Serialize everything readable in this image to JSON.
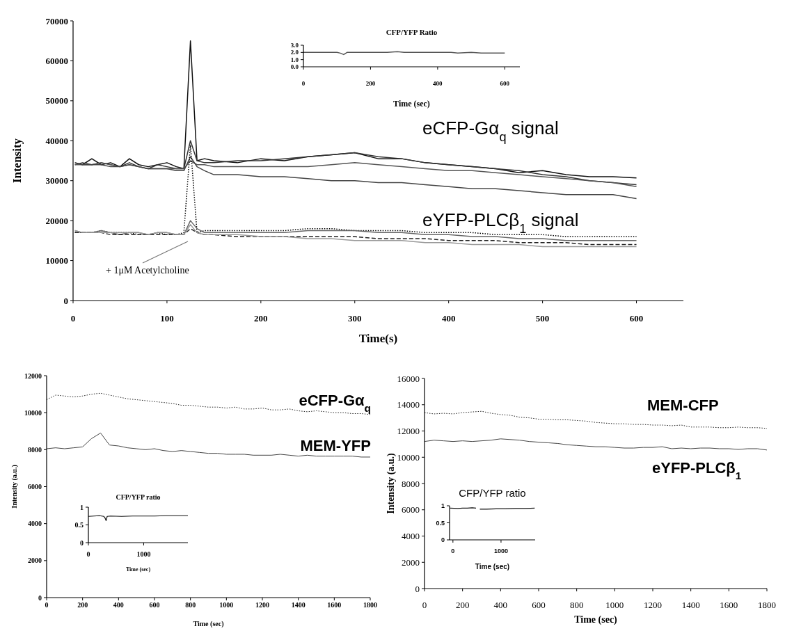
{
  "chart_data": [
    {
      "type": "line",
      "xlabel": "Time(s)",
      "ylabel": "Intensity",
      "x": [
        2,
        10,
        20,
        30,
        40,
        50,
        60,
        70,
        80,
        90,
        100,
        110,
        118,
        125,
        132,
        140,
        150,
        175,
        200,
        225,
        250,
        275,
        300,
        325,
        350,
        375,
        400,
        425,
        450,
        475,
        500,
        525,
        550,
        575,
        600
      ],
      "xlim": [
        0,
        650
      ],
      "xticks": [
        0,
        100,
        200,
        300,
        400,
        500,
        600
      ],
      "ylim": [
        0,
        70000
      ],
      "yticks": [
        0,
        10000,
        20000,
        30000,
        40000,
        50000,
        60000,
        70000
      ],
      "series": [
        {
          "color": "#111111",
          "values": [
            34500,
            34000,
            35500,
            34000,
            34500,
            33500,
            35500,
            34000,
            33500,
            34000,
            34500,
            33500,
            33000,
            65000,
            35000,
            35500,
            35000,
            34500,
            35500,
            35000,
            36000,
            36500,
            37000,
            35500,
            35500,
            34500,
            34000,
            33500,
            33000,
            32000,
            32500,
            31500,
            31000,
            31000,
            30700
          ]
        },
        {
          "color": "#333333",
          "values": [
            34000,
            34500,
            34000,
            34500,
            34000,
            33500,
            34500,
            33500,
            33000,
            34000,
            33500,
            33000,
            33000,
            40000,
            35000,
            34500,
            34500,
            35000,
            35000,
            35500,
            36000,
            36500,
            37000,
            36000,
            35500,
            34500,
            34000,
            33500,
            33000,
            32500,
            31500,
            31000,
            30000,
            29500,
            29000
          ]
        },
        {
          "color": "#555555",
          "values": [
            34000,
            34000,
            34000,
            34500,
            34000,
            33500,
            34000,
            33500,
            33000,
            33000,
            33000,
            33000,
            33000,
            35000,
            34000,
            34000,
            33500,
            33500,
            33500,
            33500,
            33500,
            34000,
            34500,
            34000,
            33500,
            33000,
            32500,
            32500,
            32000,
            31500,
            31000,
            30500,
            30000,
            29500,
            28500
          ]
        },
        {
          "color": "#444444",
          "values": [
            34500,
            34000,
            34000,
            34000,
            33500,
            33500,
            34000,
            33500,
            33000,
            33000,
            33000,
            32500,
            32500,
            36000,
            33500,
            32500,
            31500,
            31500,
            31000,
            31000,
            30500,
            30000,
            30000,
            29500,
            29500,
            29000,
            28500,
            28000,
            28000,
            27500,
            27000,
            26500,
            26500,
            26500,
            25500
          ]
        },
        {
          "color": "#000000",
          "line_style": "dotted",
          "values": [
            17000,
            17000,
            17000,
            17500,
            17000,
            17000,
            17000,
            16500,
            16500,
            17000,
            16500,
            16500,
            17000,
            39000,
            17000,
            17500,
            17500,
            17500,
            17500,
            17500,
            18000,
            18000,
            17500,
            17500,
            17500,
            17000,
            17000,
            17000,
            16500,
            16500,
            16500,
            16000,
            16000,
            16000,
            16000
          ]
        },
        {
          "color": "#666666",
          "values": [
            17500,
            17000,
            17000,
            17500,
            17000,
            16500,
            17000,
            17000,
            16500,
            17000,
            17000,
            16500,
            16500,
            20000,
            18000,
            17000,
            17000,
            17000,
            17000,
            17000,
            17500,
            17500,
            17500,
            17000,
            17000,
            16500,
            16500,
            16000,
            16000,
            15500,
            15500,
            15000,
            15000,
            15000,
            15000
          ]
        },
        {
          "color": "#222222",
          "line_style": "dashed",
          "values": [
            17000,
            17000,
            17000,
            17000,
            16500,
            16500,
            16500,
            16500,
            16500,
            16500,
            16500,
            16500,
            16500,
            18000,
            17000,
            16500,
            16500,
            16000,
            16000,
            16000,
            16000,
            16000,
            16000,
            15500,
            15500,
            15500,
            15000,
            15000,
            15000,
            14500,
            14500,
            14500,
            14000,
            14000,
            14000
          ]
        },
        {
          "color": "#999999",
          "values": [
            17500,
            17000,
            17000,
            17000,
            17000,
            17000,
            17000,
            17000,
            16500,
            17000,
            17000,
            16500,
            16500,
            19000,
            17000,
            16500,
            16500,
            16500,
            16000,
            16000,
            15500,
            15500,
            15000,
            15000,
            15000,
            14500,
            14500,
            14000,
            14000,
            14000,
            13500,
            13500,
            13500,
            13500,
            13500
          ]
        }
      ],
      "annotations": [
        "eCFP-Gα$_{q}$ signal",
        "eYFP-PLCβ$_{1}$ signal",
        "+ 1μM Acetylcholine"
      ]
    },
    {
      "type": "line",
      "title": "CFP/YFP Ratio",
      "xlabel": "Time (sec)",
      "x": [
        0,
        25,
        50,
        75,
        100,
        110,
        120,
        130,
        150,
        200,
        250,
        280,
        300,
        350,
        400,
        440,
        460,
        500,
        530,
        560,
        600
      ],
      "xlim": [
        0,
        645
      ],
      "xticks": [
        0,
        200,
        400,
        600
      ],
      "ylim": [
        0,
        3
      ],
      "yticks": [
        {
          "value": 0,
          "label": "0.0"
        },
        {
          "value": 1,
          "label": "1.0"
        },
        {
          "value": 2,
          "label": "2.0"
        },
        {
          "value": 3,
          "label": "3.0"
        }
      ],
      "series": [
        {
          "color": "#555555",
          "values": [
            2.0,
            2.0,
            2.0,
            2.0,
            2.0,
            1.9,
            1.7,
            2.0,
            2.0,
            2.0,
            2.0,
            2.1,
            2.0,
            2.0,
            2.0,
            2.0,
            1.9,
            2.0,
            1.9,
            1.9,
            1.9
          ]
        }
      ]
    },
    {
      "type": "line",
      "xlabel": "Time (sec)",
      "ylabel": "Intensity (a.u.)",
      "x": [
        0,
        50,
        100,
        150,
        200,
        250,
        300,
        350,
        400,
        450,
        500,
        550,
        600,
        650,
        700,
        750,
        800,
        850,
        900,
        950,
        1000,
        1050,
        1100,
        1150,
        1200,
        1250,
        1300,
        1350,
        1400,
        1450,
        1500,
        1550,
        1600,
        1650,
        1700,
        1750,
        1800
      ],
      "xlim": [
        0,
        1800
      ],
      "xticks": [
        0,
        200,
        400,
        600,
        800,
        1000,
        1200,
        1400,
        1600,
        1800
      ],
      "ylim": [
        0,
        12000
      ],
      "yticks": [
        0,
        2000,
        4000,
        6000,
        8000,
        10000,
        12000
      ],
      "series": [
        {
          "name": "eCFP-Gα$_{q}$",
          "color": "#222222",
          "line_style": "dotted",
          "values": [
            10700,
            10950,
            10900,
            10850,
            10900,
            11000,
            11050,
            10950,
            10850,
            10750,
            10700,
            10650,
            10600,
            10550,
            10500,
            10400,
            10400,
            10350,
            10300,
            10300,
            10250,
            10300,
            10200,
            10200,
            10250,
            10150,
            10150,
            10200,
            10100,
            10050,
            10100,
            10050,
            10000,
            10000,
            9950,
            9950,
            9900
          ]
        },
        {
          "name": "MEM-YFP",
          "color": "#444444",
          "values": [
            8050,
            8100,
            8050,
            8100,
            8150,
            8600,
            8900,
            8250,
            8200,
            8100,
            8050,
            8000,
            8050,
            7950,
            7900,
            7950,
            7900,
            7850,
            7800,
            7800,
            7750,
            7750,
            7750,
            7700,
            7700,
            7700,
            7750,
            7700,
            7650,
            7700,
            7650,
            7650,
            7650,
            7650,
            7650,
            7600,
            7600
          ]
        }
      ]
    },
    {
      "type": "line",
      "title": "CFP/YFP ratio",
      "xlabel": "Time (sec)",
      "x": [
        0,
        100,
        200,
        280,
        300,
        320,
        340,
        400,
        600,
        800,
        1000,
        1200,
        1400,
        1600,
        1800
      ],
      "xlim": [
        0,
        1800
      ],
      "xticks": [
        0,
        1000
      ],
      "ylim": [
        0,
        1
      ],
      "yticks": [
        0,
        0.5,
        1
      ],
      "series": [
        {
          "color": "#111111",
          "values": [
            0.74,
            0.75,
            0.76,
            0.74,
            0.7,
            0.62,
            0.74,
            0.75,
            0.74,
            0.75,
            0.75,
            0.75,
            0.76,
            0.76,
            0.76
          ]
        }
      ]
    },
    {
      "type": "line",
      "xlabel": "Time (sec)",
      "ylabel": "Intensity (a.u.)",
      "x": [
        0,
        50,
        100,
        150,
        200,
        250,
        300,
        350,
        400,
        450,
        500,
        550,
        600,
        650,
        700,
        750,
        800,
        850,
        900,
        950,
        1000,
        1050,
        1100,
        1150,
        1200,
        1250,
        1300,
        1350,
        1400,
        1450,
        1500,
        1550,
        1600,
        1650,
        1700,
        1750,
        1800
      ],
      "xlim": [
        0,
        1800
      ],
      "xticks": [
        0,
        200,
        400,
        600,
        800,
        1000,
        1200,
        1400,
        1600,
        1800
      ],
      "ylim": [
        0,
        16000
      ],
      "yticks": [
        0,
        2000,
        4000,
        6000,
        8000,
        10000,
        12000,
        14000,
        16000
      ],
      "series": [
        {
          "name": "MEM-CFP",
          "color": "#222222",
          "line_style": "dotted",
          "values": [
            13400,
            13300,
            13350,
            13300,
            13400,
            13450,
            13500,
            13350,
            13250,
            13200,
            13050,
            13000,
            12900,
            12900,
            12850,
            12850,
            12800,
            12750,
            12650,
            12600,
            12550,
            12550,
            12500,
            12500,
            12450,
            12450,
            12400,
            12450,
            12300,
            12300,
            12300,
            12250,
            12250,
            12300,
            12250,
            12250,
            12200
          ]
        },
        {
          "name": "eYFP-PLCβ$_{1}$",
          "color": "#444444",
          "values": [
            11200,
            11300,
            11250,
            11200,
            11250,
            11200,
            11250,
            11300,
            11400,
            11350,
            11300,
            11200,
            11150,
            11100,
            11050,
            10950,
            10900,
            10850,
            10800,
            10800,
            10750,
            10700,
            10700,
            10750,
            10750,
            10800,
            10650,
            10700,
            10650,
            10700,
            10700,
            10650,
            10650,
            10600,
            10650,
            10650,
            10550
          ]
        }
      ]
    },
    {
      "type": "line",
      "title": "CFP/YFP ratio",
      "xlabel": "Time (sec)",
      "x": [
        -60,
        100,
        200,
        300,
        400,
        480,
        520,
        560,
        700,
        900,
        1100,
        1300,
        1500,
        1700
      ],
      "xlim": [
        -70,
        1710
      ],
      "xticks": [
        0,
        1000
      ],
      "ylim": [
        0,
        1
      ],
      "yticks": [
        0,
        0.5,
        1
      ],
      "series": [
        {
          "color": "#111111",
          "values": [
            0.93,
            0.92,
            0.93,
            0.93,
            0.94,
            0.93,
            null,
            0.9,
            0.9,
            0.91,
            0.91,
            0.92,
            0.92,
            0.93
          ]
        }
      ]
    }
  ]
}
